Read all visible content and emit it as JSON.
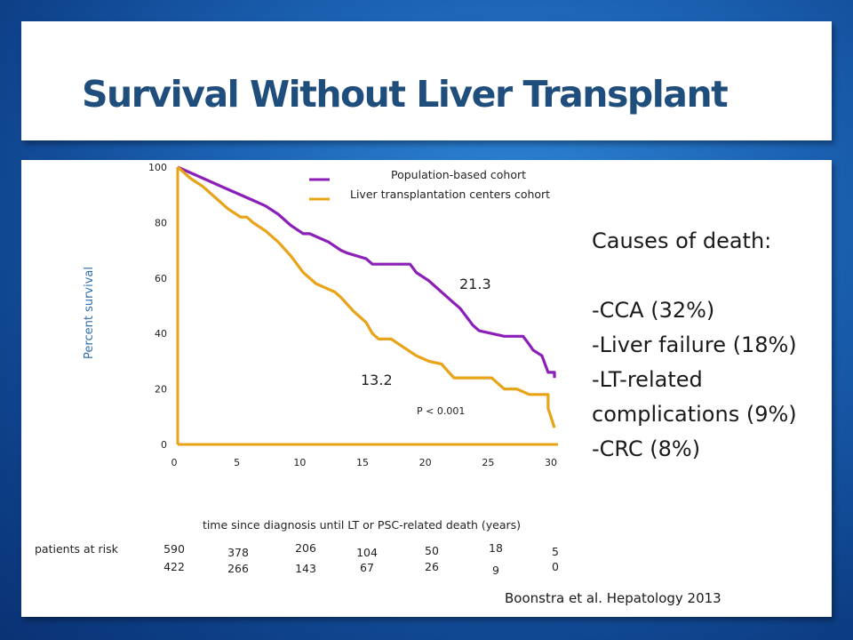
{
  "slide": {
    "title": "Survival Without Liver Transplant",
    "causes_heading": "Causes of death:",
    "causes": [
      "-CCA (32%)",
      "-Liver failure (18%)",
      "-LT-related",
      "complications (9%)",
      "-CRC (8%)"
    ],
    "citation": "Boonstra et al.  Hepatology 2013"
  },
  "colors": {
    "population": "#8b1fb8",
    "transplant_centers": "#e8a317",
    "axis": "#e8a317",
    "ylabel": "#2f6fb0"
  },
  "chart_data": {
    "type": "line",
    "ylabel": "Percent survival",
    "xlabel": "time since diagnosis until LT or PSC-related death (years)",
    "xlim": [
      0,
      30
    ],
    "ylim": [
      0,
      100
    ],
    "xticks": [
      "0",
      "5",
      "10",
      "15",
      "20",
      "25",
      "30"
    ],
    "yticks": [
      "0",
      "20",
      "40",
      "60",
      "80",
      "100"
    ],
    "series": [
      {
        "name": "Population-based cohort",
        "x": [
          0,
          2,
          4,
          6,
          7,
          8,
          9,
          10,
          10.5,
          11,
          12,
          13,
          13.5,
          15,
          15.5,
          17,
          18.5,
          19,
          20,
          21,
          22,
          22.5,
          23,
          23.5,
          24,
          26,
          27.5,
          28,
          28.3,
          29,
          29.5,
          30,
          30,
          30
        ],
        "y": [
          100,
          96,
          92,
          88,
          86,
          83,
          79,
          76,
          76,
          75,
          73,
          70,
          69,
          67,
          65,
          65,
          65,
          62,
          59,
          55,
          51,
          49,
          46,
          43,
          41,
          39,
          39,
          36,
          34,
          32,
          26,
          26,
          24,
          24
        ]
      },
      {
        "name": "Liver transplantation centers cohort",
        "x": [
          0,
          0.5,
          1,
          2,
          3,
          4,
          5,
          5.5,
          6,
          7,
          8,
          9,
          10,
          11,
          12,
          12.5,
          13,
          14,
          15,
          15.5,
          16,
          17,
          18,
          19,
          20,
          21,
          22,
          23,
          25,
          25.5,
          26,
          27,
          28,
          29,
          29.5,
          29.5,
          30
        ],
        "y": [
          100,
          98,
          96,
          93,
          89,
          85,
          82,
          82,
          80,
          77,
          73,
          68,
          62,
          58,
          56,
          55,
          53,
          48,
          44,
          40,
          38,
          38,
          35,
          32,
          30,
          29,
          24,
          24,
          24,
          22,
          20,
          20,
          18,
          18,
          18,
          13,
          6
        ]
      }
    ],
    "annotations": [
      {
        "text": "21.3",
        "x": 22.5,
        "y": 60
      },
      {
        "text": "13.2",
        "x": 15.5,
        "y": 24
      },
      {
        "text": "P < 0.001",
        "x": 21,
        "y": 13
      }
    ],
    "risk_table": {
      "label": "patients at risk",
      "rows": [
        [
          "590",
          "378",
          "206",
          "104",
          "50",
          "18",
          "5"
        ],
        [
          "422",
          "266",
          "143",
          "67",
          "26",
          "9",
          "0"
        ]
      ]
    },
    "legend": "top-center"
  }
}
